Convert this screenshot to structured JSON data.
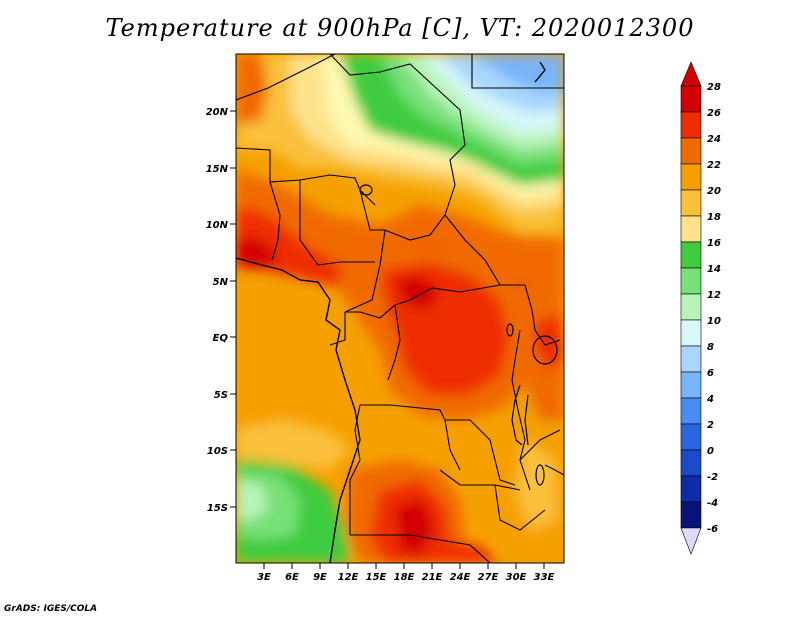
{
  "title": "Temperature at 900hPa [C], VT: 2020012300",
  "footer": "GrADS: IGES/COLA",
  "map": {
    "region": "Central and Southern Africa",
    "lat_labels": [
      "20N",
      "15N",
      "10N",
      "5N",
      "EQ",
      "5S",
      "10S",
      "15S"
    ],
    "lon_labels": [
      "3E",
      "6E",
      "9E",
      "12E",
      "15E",
      "18E",
      "21E",
      "24E",
      "27E",
      "30E",
      "33E"
    ]
  },
  "colorbar": {
    "labels": [
      "28",
      "26",
      "24",
      "22",
      "20",
      "18",
      "16",
      "14",
      "12",
      "10",
      "8",
      "6",
      "4",
      "2",
      "0",
      "-2",
      "-4",
      "-6"
    ],
    "colors": {
      "c28": "#d20000",
      "c26": "#ee2e00",
      "c24": "#f06b00",
      "c22": "#f5a000",
      "c20": "#fac03a",
      "c18": "#fde28a",
      "c16": "#fff9b0",
      "c14": "#3fcc3f",
      "c12": "#78e078",
      "c10": "#b8f4b8",
      "c8": "#d6f8f8",
      "c6": "#a8d6fc",
      "c4": "#78b4f8",
      "c2": "#4a8cf2",
      "c0": "#2a66e0",
      "cm2": "#1a4ac8",
      "cm4": "#0c2ca8",
      "cm6": "#0a1478",
      "under": "#dcdcf8"
    }
  }
}
